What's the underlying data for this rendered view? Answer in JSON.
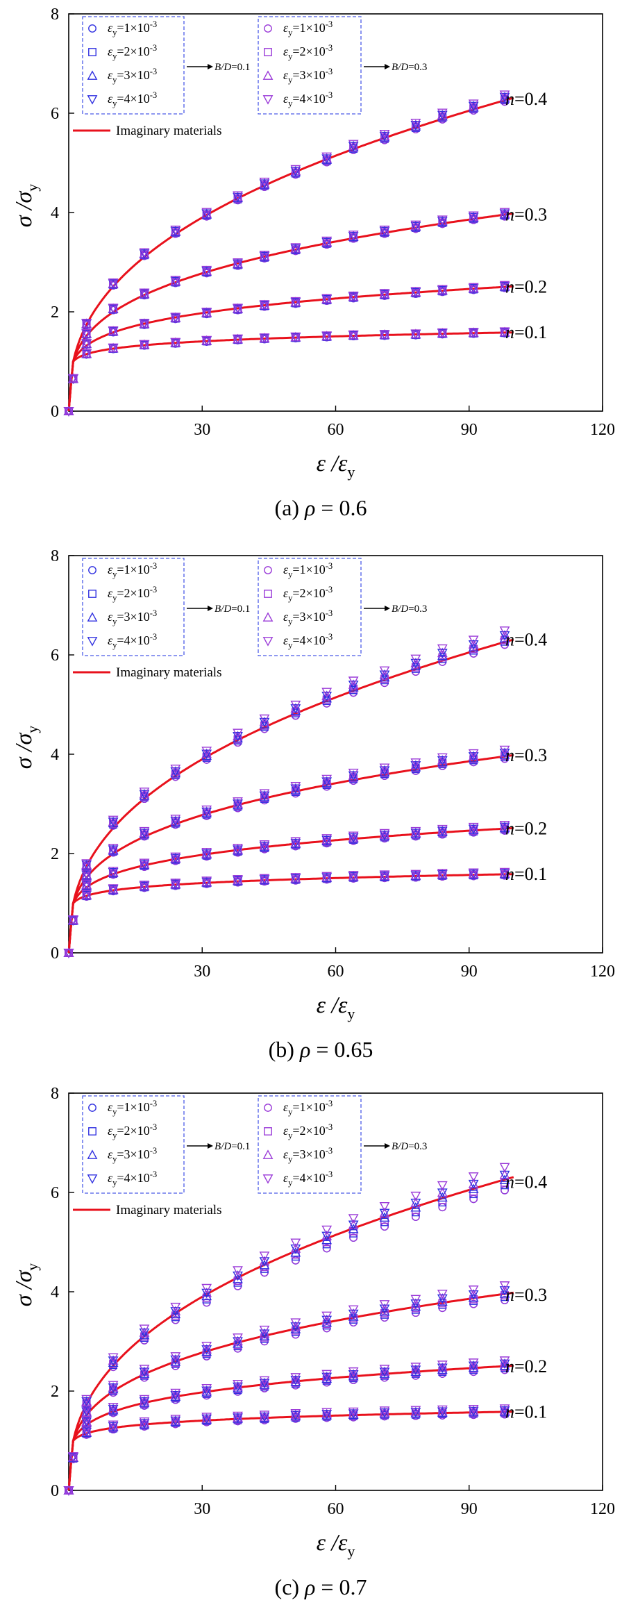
{
  "legend": {
    "group_left_entries": [
      "ε_y=1×10^-3",
      "ε_y=2×10^-3",
      "ε_y=3×10^-3",
      "ε_y=4×10^-3"
    ],
    "group_right_entries": [
      "ε_y=1×10^-3",
      "ε_y=2×10^-3",
      "ε_y=3×10^-3",
      "ε_y=4×10^-3"
    ],
    "group_left_label": "B/D=0.1",
    "group_right_label": "B/D=0.3",
    "line_label": "Imaginary materials"
  },
  "colors": {
    "curve": "#e8111c",
    "marker_left": "#3030e0",
    "marker_right": "#9a3ad8",
    "legend_border": "#4a5ae8"
  },
  "marker_shapes": [
    "circle",
    "square",
    "triangle-up",
    "triangle-down"
  ],
  "chart_data": [
    {
      "type": "line",
      "caption": "(a) ρ = 0.6",
      "xlabel": "ε/ε_y",
      "ylabel": "σ/σ_y",
      "xlim": [
        0,
        120
      ],
      "ylim": [
        0,
        8
      ],
      "xticks": [
        30,
        60,
        90,
        120
      ],
      "yticks": [
        0,
        2,
        4,
        6,
        8
      ],
      "x": [
        0,
        1,
        4,
        10,
        17,
        24,
        31,
        38,
        44,
        51,
        58,
        64,
        71,
        78,
        84,
        91,
        98
      ],
      "series": [
        {
          "name": "n=0.4",
          "exponent": 0.4,
          "marker_y": [
            0.0,
            0.65,
            1.75,
            2.55,
            3.15,
            3.6,
            3.95,
            4.28,
            4.55,
            4.8,
            5.05,
            5.3,
            5.5,
            5.72,
            5.92,
            6.1,
            6.28
          ]
        },
        {
          "name": "n=0.3",
          "exponent": 0.3,
          "marker_y": [
            0.0,
            0.65,
            1.55,
            2.05,
            2.35,
            2.6,
            2.8,
            2.95,
            3.1,
            3.25,
            3.38,
            3.5,
            3.6,
            3.7,
            3.8,
            3.88,
            3.95
          ]
        },
        {
          "name": "n=0.2",
          "exponent": 0.2,
          "marker_y": [
            0.0,
            0.65,
            1.35,
            1.6,
            1.75,
            1.87,
            1.97,
            2.05,
            2.12,
            2.18,
            2.24,
            2.29,
            2.34,
            2.38,
            2.42,
            2.46,
            2.5
          ]
        },
        {
          "name": "n=0.1",
          "exponent": 0.1,
          "marker_y": [
            0.0,
            0.65,
            1.15,
            1.26,
            1.33,
            1.37,
            1.41,
            1.44,
            1.46,
            1.48,
            1.5,
            1.52,
            1.53,
            1.54,
            1.56,
            1.57,
            1.58
          ]
        }
      ],
      "spread": 0.03
    },
    {
      "type": "line",
      "caption": "(b) ρ = 0.65",
      "xlabel": "ε/ε_y",
      "ylabel": "σ/σ_y",
      "xlim": [
        0,
        120
      ],
      "ylim": [
        0,
        8
      ],
      "xticks": [
        30,
        60,
        90,
        120
      ],
      "yticks": [
        0,
        2,
        4,
        6,
        8
      ],
      "x": [
        0,
        1,
        4,
        10,
        17,
        24,
        31,
        38,
        44,
        51,
        58,
        64,
        71,
        78,
        84,
        91,
        98
      ],
      "series": [
        {
          "name": "n=0.4",
          "exponent": 0.4,
          "marker_y": [
            0.0,
            0.65,
            1.75,
            2.6,
            3.15,
            3.6,
            3.95,
            4.3,
            4.58,
            4.85,
            5.1,
            5.32,
            5.52,
            5.75,
            5.95,
            6.12,
            6.3
          ]
        },
        {
          "name": "n=0.3",
          "exponent": 0.3,
          "marker_y": [
            0.0,
            0.65,
            1.55,
            2.05,
            2.38,
            2.62,
            2.8,
            2.96,
            3.12,
            3.26,
            3.4,
            3.52,
            3.62,
            3.72,
            3.82,
            3.9,
            3.97
          ]
        },
        {
          "name": "n=0.2",
          "exponent": 0.2,
          "marker_y": [
            0.0,
            0.65,
            1.35,
            1.6,
            1.76,
            1.88,
            1.97,
            2.05,
            2.12,
            2.18,
            2.24,
            2.29,
            2.34,
            2.38,
            2.42,
            2.46,
            2.5
          ]
        },
        {
          "name": "n=0.1",
          "exponent": 0.1,
          "marker_y": [
            0.0,
            0.65,
            1.15,
            1.26,
            1.33,
            1.37,
            1.41,
            1.44,
            1.46,
            1.48,
            1.5,
            1.52,
            1.53,
            1.54,
            1.56,
            1.57,
            1.58
          ]
        }
      ],
      "spread": 0.06
    },
    {
      "type": "line",
      "caption": "(c) ρ = 0.7",
      "xlabel": "ε/ε_y",
      "ylabel": "σ/σ_y",
      "xlim": [
        0,
        120
      ],
      "ylim": [
        0,
        8
      ],
      "xticks": [
        30,
        60,
        90,
        120
      ],
      "yticks": [
        0,
        2,
        4,
        6,
        8
      ],
      "x": [
        0,
        1,
        4,
        10,
        17,
        24,
        31,
        38,
        44,
        51,
        58,
        64,
        71,
        78,
        84,
        91,
        98
      ],
      "series": [
        {
          "name": "n=0.4",
          "exponent": 0.4,
          "marker_y": [
            0.0,
            0.65,
            1.75,
            2.55,
            3.1,
            3.52,
            3.88,
            4.22,
            4.5,
            4.75,
            5.0,
            5.22,
            5.45,
            5.65,
            5.85,
            6.02,
            6.2
          ]
        },
        {
          "name": "n=0.3",
          "exponent": 0.3,
          "marker_y": [
            0.0,
            0.65,
            1.55,
            2.02,
            2.33,
            2.57,
            2.77,
            2.93,
            3.08,
            3.22,
            3.35,
            3.47,
            3.57,
            3.67,
            3.77,
            3.85,
            3.93
          ]
        },
        {
          "name": "n=0.2",
          "exponent": 0.2,
          "marker_y": [
            0.0,
            0.65,
            1.35,
            1.6,
            1.75,
            1.87,
            1.96,
            2.04,
            2.11,
            2.17,
            2.23,
            2.28,
            2.33,
            2.37,
            2.41,
            2.45,
            2.49
          ]
        },
        {
          "name": "n=0.1",
          "exponent": 0.1,
          "marker_y": [
            0.0,
            0.65,
            1.15,
            1.26,
            1.32,
            1.37,
            1.41,
            1.43,
            1.45,
            1.48,
            1.5,
            1.51,
            1.53,
            1.54,
            1.55,
            1.56,
            1.57
          ]
        }
      ],
      "spread": 0.1
    }
  ]
}
